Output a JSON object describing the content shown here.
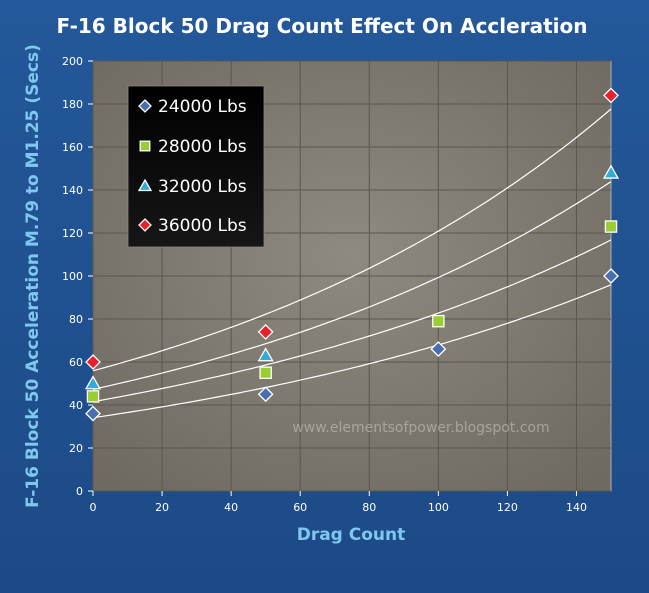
{
  "chart_data": {
    "type": "scatter",
    "title": "F-16 Block 50 Drag Count Effect On Accleration",
    "xlabel": "Drag Count",
    "ylabel": "F-16 Block 50 Acceleration   M.79 to M1.25 (Secs)",
    "xlim": [
      0,
      150
    ],
    "ylim": [
      0,
      200
    ],
    "xticks": [
      0,
      20,
      40,
      60,
      80,
      100,
      120,
      140
    ],
    "yticks": [
      0,
      20,
      40,
      60,
      80,
      100,
      120,
      140,
      160,
      180,
      200
    ],
    "grid": true,
    "trendlines": "exponential",
    "legend_position": "top-left",
    "watermark": "www.elementsofpower.blogspot.com",
    "series": [
      {
        "name": "24000 Lbs",
        "marker": "diamond",
        "color": "#4a6fb0",
        "x": [
          0,
          50,
          100,
          150
        ],
        "y": [
          36,
          45,
          66,
          100
        ]
      },
      {
        "name": "28000 Lbs",
        "marker": "square",
        "color": "#9acd32",
        "x": [
          0,
          50,
          100,
          150
        ],
        "y": [
          44,
          55,
          79,
          123
        ]
      },
      {
        "name": "32000 Lbs",
        "marker": "triangle",
        "color": "#33aad8",
        "x": [
          0,
          50,
          150
        ],
        "y": [
          50,
          63,
          148
        ]
      },
      {
        "name": "36000 Lbs",
        "marker": "diamond",
        "color": "#e8202a",
        "x": [
          0,
          50,
          150
        ],
        "y": [
          60,
          74,
          184
        ]
      }
    ]
  }
}
